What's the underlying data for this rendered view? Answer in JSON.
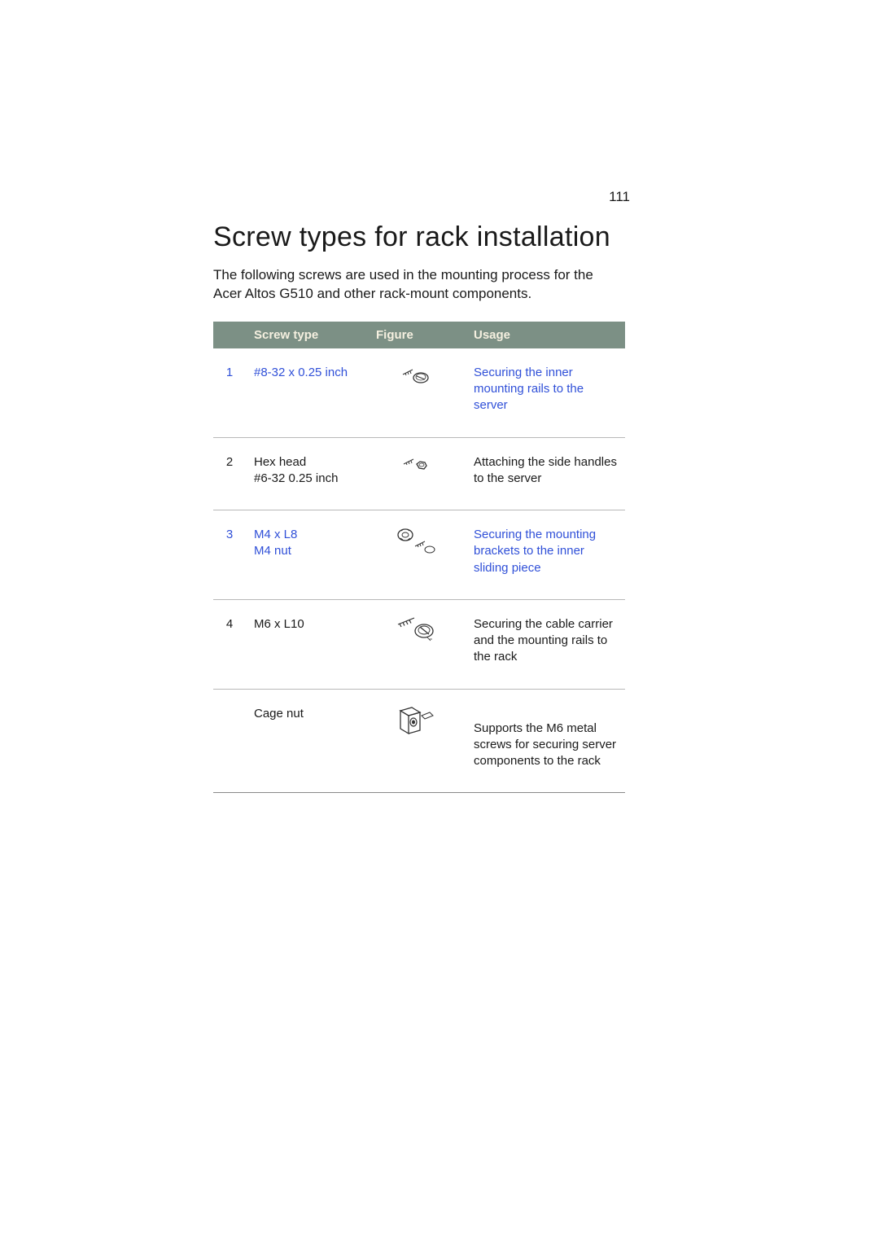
{
  "page_number": "111",
  "heading": "Screw types for rack installation",
  "intro": "The following screws are used in the mounting process for the Acer Altos G510 and other rack-mount components.",
  "table": {
    "headers": {
      "col_num": "",
      "col_type": "Screw type",
      "col_figure": "Figure",
      "col_usage": "Usage"
    },
    "rows": [
      {
        "num": "1",
        "num_link": true,
        "type_lines": [
          "#8-32 x 0.25 inch"
        ],
        "type_link": true,
        "usage": "Securing the inner mounting rails to the server",
        "usage_link": true,
        "icon": "screw1"
      },
      {
        "num": "2",
        "num_link": false,
        "type_lines": [
          "Hex head",
          "#6-32 0.25 inch"
        ],
        "type_link": false,
        "usage": "Attaching the side handles to the server",
        "usage_link": false,
        "icon": "screw2"
      },
      {
        "num": "3",
        "num_link": true,
        "type_lines": [
          "M4 x L8",
          "M4 nut"
        ],
        "type_link": true,
        "usage": "Securing the mounting brackets to the inner sliding piece",
        "usage_link": true,
        "icon": "screw3"
      },
      {
        "num": "4",
        "num_link": false,
        "type_lines": [
          "M6 x L10"
        ],
        "type_link": false,
        "usage": "Securing the cable carrier and the mounting rails to the rack",
        "usage_link": false,
        "icon": "screw4"
      },
      {
        "num": "",
        "num_link": false,
        "type_lines": [
          "Cage nut"
        ],
        "type_link": false,
        "usage": "Supports the M6 metal screws for securing server components to the rack",
        "usage_link": false,
        "icon": "cagenut"
      }
    ]
  },
  "colors": {
    "header_bg": "#7c9085",
    "header_text": "#f5f0e0",
    "link_color": "#3050d8",
    "text_color": "#1a1a1a",
    "border_color": "#b8b8b8"
  }
}
